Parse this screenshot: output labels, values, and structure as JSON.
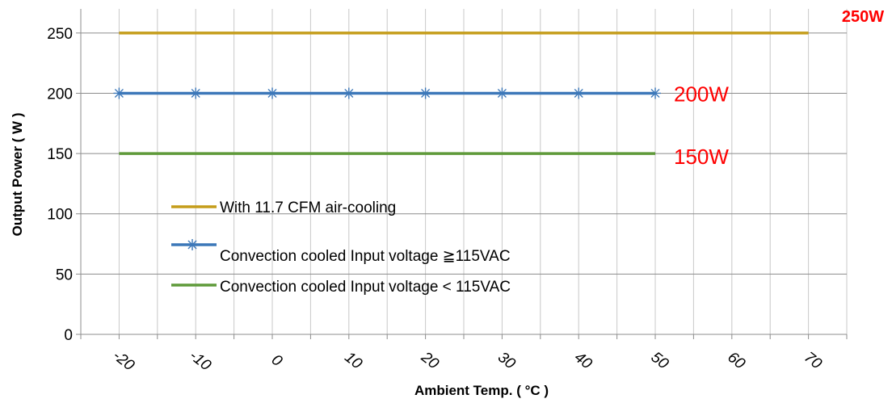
{
  "chart_data": {
    "type": "line",
    "title": "",
    "xlabel": "Ambient Temp. ( °C )",
    "ylabel": "Output Power ( W )",
    "x": [
      -20,
      -10,
      0,
      10,
      20,
      30,
      40,
      50,
      60,
      70
    ],
    "x_ticks": [
      "-20",
      "-10",
      "0",
      "10",
      "20",
      "30",
      "40",
      "50",
      "60",
      "70"
    ],
    "y_ticks": [
      "0",
      "50",
      "100",
      "150",
      "200",
      "250"
    ],
    "xlim": [
      -25,
      75
    ],
    "ylim": [
      0,
      270
    ],
    "grid": true,
    "legend_placement": "center-left inside plot",
    "series": [
      {
        "name": "With 11.7 CFM air-cooling",
        "color": "#c59d1b",
        "marker": "none",
        "x": [
          -20,
          70
        ],
        "y": [
          250,
          250
        ]
      },
      {
        "name": "Convection cooled Input voltage ≧115VAC",
        "color": "#3d78b9",
        "marker": "star",
        "x": [
          -20,
          -10,
          0,
          10,
          20,
          30,
          40,
          50
        ],
        "y": [
          200,
          200,
          200,
          200,
          200,
          200,
          200,
          200
        ]
      },
      {
        "name": "Convection cooled Input voltage < 115VAC",
        "color": "#5f9a3a",
        "marker": "none",
        "x": [
          -20,
          50
        ],
        "y": [
          150,
          150
        ]
      }
    ],
    "annotations": [
      {
        "text": "250W",
        "x": 75,
        "y": 263,
        "color": "#ff0000",
        "bold": true
      },
      {
        "text": "200W",
        "x": 52,
        "y": 200,
        "color": "#ff0000",
        "bold": false
      },
      {
        "text": "150W",
        "x": 52,
        "y": 148,
        "color": "#ff0000",
        "bold": false
      }
    ]
  }
}
